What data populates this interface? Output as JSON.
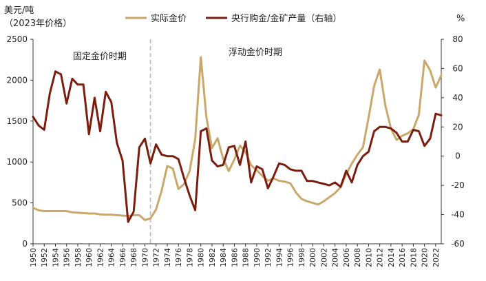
{
  "chart_data": {
    "type": "line",
    "left_axis_label_line1": "美元/吨",
    "left_axis_label_line2": "（2023年价格）",
    "right_axis_label": "%",
    "y_left": {
      "min": 0,
      "max": 2500,
      "ticks": [
        0,
        500,
        1000,
        1500,
        2000,
        2500
      ]
    },
    "y_right": {
      "min": -60,
      "max": 80,
      "ticks": [
        -60,
        -40,
        -20,
        0,
        20,
        40,
        60,
        80
      ]
    },
    "x_range": [
      1950,
      2023
    ],
    "x_ticks": [
      1950,
      1952,
      1954,
      1956,
      1958,
      1960,
      1962,
      1964,
      1966,
      1968,
      1970,
      1972,
      1974,
      1976,
      1978,
      1980,
      1982,
      1984,
      1986,
      1988,
      1990,
      1992,
      1994,
      1996,
      1998,
      2000,
      2002,
      2004,
      2006,
      2008,
      2010,
      2012,
      2014,
      2016,
      2018,
      2020,
      2022
    ],
    "divider_year": 1971,
    "annotations": {
      "fixed_period": "固定金价时期",
      "floating_period": "浮动金价时期"
    },
    "legend_position": "top",
    "series": [
      {
        "name": "实际金价",
        "axis": "left",
        "color": "#c9a86a",
        "x": [
          1950,
          1951,
          1952,
          1953,
          1954,
          1955,
          1956,
          1957,
          1958,
          1959,
          1960,
          1961,
          1962,
          1963,
          1964,
          1965,
          1966,
          1967,
          1968,
          1969,
          1970,
          1971,
          1972,
          1973,
          1974,
          1975,
          1976,
          1977,
          1978,
          1979,
          1980,
          1981,
          1982,
          1983,
          1984,
          1985,
          1986,
          1987,
          1988,
          1989,
          1990,
          1991,
          1992,
          1993,
          1994,
          1995,
          1996,
          1997,
          1998,
          1999,
          2000,
          2001,
          2002,
          2003,
          2004,
          2005,
          2006,
          2007,
          2008,
          2009,
          2010,
          2011,
          2012,
          2013,
          2014,
          2015,
          2016,
          2017,
          2018,
          2019,
          2020,
          2021,
          2022,
          2023
        ],
        "values": [
          440,
          410,
          400,
          400,
          400,
          400,
          400,
          385,
          380,
          375,
          370,
          370,
          360,
          355,
          355,
          350,
          345,
          340,
          350,
          350,
          290,
          310,
          420,
          650,
          950,
          920,
          670,
          730,
          890,
          1280,
          2280,
          1550,
          1170,
          1290,
          1040,
          890,
          1030,
          1200,
          1120,
          960,
          900,
          830,
          770,
          800,
          770,
          760,
          740,
          630,
          550,
          520,
          500,
          480,
          520,
          570,
          620,
          690,
          850,
          980,
          1090,
          1180,
          1540,
          1930,
          2130,
          1690,
          1410,
          1270,
          1320,
          1350,
          1400,
          1580,
          2240,
          2120,
          1910,
          2060
        ]
      },
      {
        "name": "央行购金/金矿产量（右轴）",
        "axis": "right",
        "color": "#7a1c0e",
        "x": [
          1950,
          1951,
          1952,
          1953,
          1954,
          1955,
          1956,
          1957,
          1958,
          1959,
          1960,
          1961,
          1962,
          1963,
          1964,
          1965,
          1966,
          1967,
          1968,
          1969,
          1970,
          1971,
          1972,
          1973,
          1974,
          1975,
          1976,
          1977,
          1978,
          1979,
          1980,
          1981,
          1982,
          1983,
          1984,
          1985,
          1986,
          1987,
          1988,
          1989,
          1990,
          1991,
          1992,
          1993,
          1994,
          1995,
          1996,
          1997,
          1998,
          1999,
          2000,
          2001,
          2002,
          2003,
          2004,
          2005,
          2006,
          2007,
          2008,
          2009,
          2010,
          2011,
          2012,
          2013,
          2014,
          2015,
          2016,
          2017,
          2018,
          2019,
          2020,
          2021,
          2022,
          2023
        ],
        "values": [
          27,
          21,
          18,
          43,
          58,
          56,
          36,
          53,
          49,
          49,
          15,
          40,
          17,
          44,
          37,
          9,
          -3,
          -45,
          -38,
          6,
          12,
          -5,
          8,
          1,
          0,
          0,
          -2,
          -15,
          -27,
          -37,
          17,
          19,
          -3,
          -7,
          -6,
          6,
          7,
          -6,
          10,
          -18,
          -7,
          -9,
          -22,
          -14,
          -5,
          -6,
          -9,
          -10,
          -10,
          -17,
          -17,
          -18,
          -19,
          -20,
          -18,
          -21,
          -10,
          -18,
          -6,
          0,
          3,
          17,
          20,
          20,
          19,
          16,
          10,
          10,
          18,
          17,
          7,
          12,
          29,
          28
        ]
      }
    ]
  }
}
